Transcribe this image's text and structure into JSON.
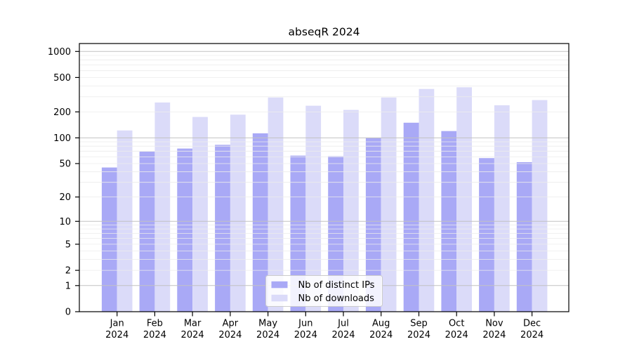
{
  "title": "abseqR 2024",
  "chart_data": {
    "type": "bar",
    "title": "abseqR 2024",
    "y_scale": "log10(1+v)",
    "grid": true,
    "legend_position": "lower center",
    "months": [
      "Jan",
      "Feb",
      "Mar",
      "Apr",
      "May",
      "Jun",
      "Jul",
      "Aug",
      "Sep",
      "Oct",
      "Nov",
      "Dec"
    ],
    "year": "2024",
    "y_ticks": [
      0,
      1,
      2,
      5,
      10,
      20,
      50,
      100,
      200,
      500,
      1000
    ],
    "ylim": [
      0,
      1236
    ],
    "series": [
      {
        "name": "Nb of distinct IPs",
        "color": "#a9a9f6",
        "values": [
          45,
          69,
          75,
          83,
          113,
          62,
          61,
          100,
          150,
          120,
          58,
          52
        ]
      },
      {
        "name": "Nb of downloads",
        "color": "#dbdbf9",
        "values": [
          122,
          257,
          175,
          186,
          294,
          236,
          211,
          294,
          369,
          386,
          239,
          274
        ]
      }
    ]
  },
  "styles": {
    "grid_minor_color": "#ececec",
    "grid_major_color": "#c2c2c2",
    "axis_color": "#000000",
    "legend_border_color": "#cccccc",
    "legend_bg": "rgba(255,255,255,0.85)"
  }
}
